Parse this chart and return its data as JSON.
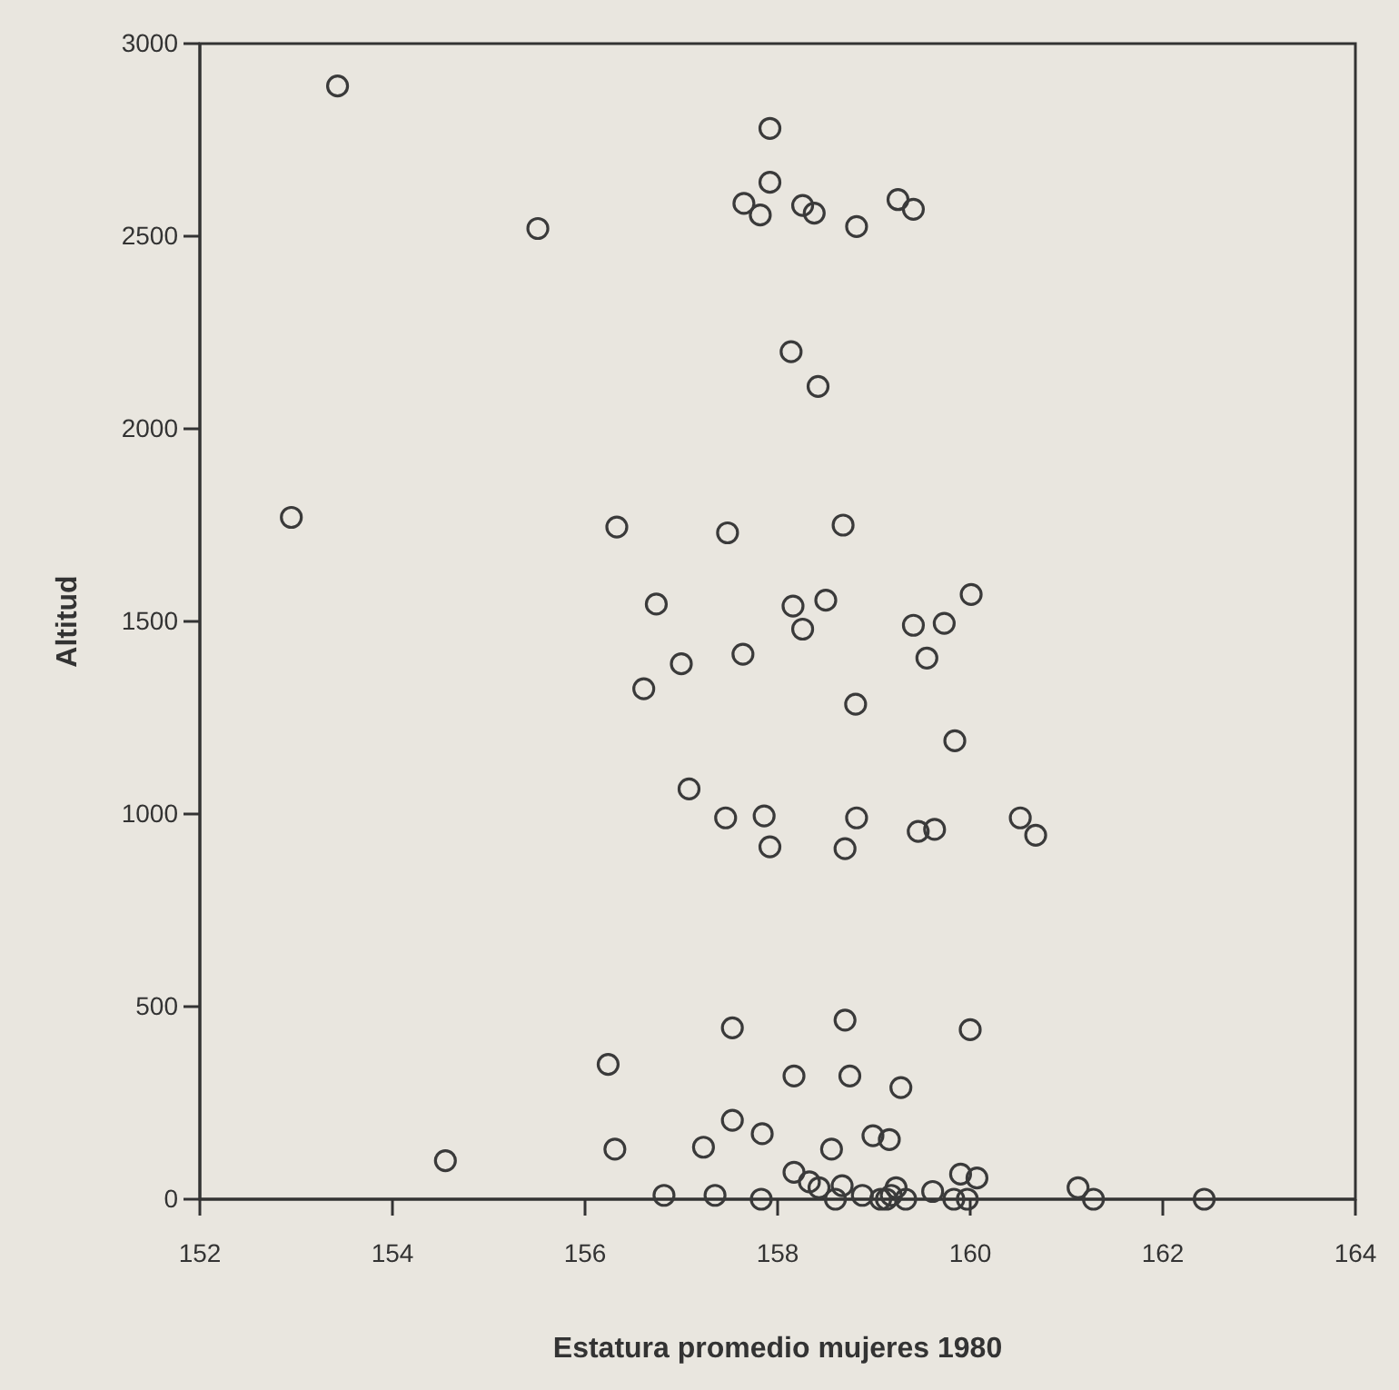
{
  "chart_data": {
    "type": "scatter",
    "xlabel": "Estatura promedio mujeres 1980",
    "ylabel": "Altitud",
    "xlim": [
      152,
      164
    ],
    "xticks": [
      152,
      154,
      156,
      158,
      160,
      162,
      164
    ],
    "ylim": [
      0,
      3000
    ],
    "yticks": [
      0,
      500,
      1000,
      1500,
      2000,
      2500,
      3000
    ],
    "grid": false,
    "marker": "circle",
    "series": [
      {
        "color": "#3a3a3a",
        "x": [
          153.43,
          155.51,
          157.92,
          157.92,
          157.65,
          157.82,
          158.26,
          158.38,
          158.82,
          159.25,
          159.41,
          158.14,
          158.42,
          152.95,
          156.33,
          157.48,
          158.68,
          156.74,
          158.16,
          158.5,
          158.26,
          159.41,
          159.73,
          160.01,
          157.64,
          157.0,
          156.61,
          159.55,
          158.81,
          159.84,
          157.08,
          157.46,
          157.86,
          157.92,
          158.82,
          158.7,
          159.46,
          159.63,
          160.52,
          160.68,
          157.53,
          158.7,
          160.0,
          156.24,
          158.17,
          158.75,
          159.28,
          157.53,
          157.84,
          157.23,
          156.31,
          154.55,
          158.56,
          158.99,
          159.16,
          158.17,
          158.33,
          158.43,
          158.67,
          159.9,
          160.07,
          161.12,
          156.82,
          157.35,
          157.83,
          158.6,
          158.88,
          159.07,
          159.13,
          159.23,
          159.33,
          159.61,
          159.83,
          159.97,
          161.28,
          162.43,
          159.18
        ],
        "values": [
          2890,
          2520,
          2780,
          2640,
          2585,
          2555,
          2580,
          2560,
          2525,
          2595,
          2570,
          2200,
          2110,
          1770,
          1745,
          1730,
          1750,
          1545,
          1540,
          1555,
          1480,
          1490,
          1495,
          1570,
          1415,
          1390,
          1325,
          1405,
          1285,
          1190,
          1065,
          990,
          995,
          915,
          990,
          910,
          955,
          960,
          990,
          945,
          445,
          465,
          440,
          350,
          320,
          320,
          290,
          205,
          170,
          135,
          130,
          100,
          130,
          165,
          155,
          70,
          45,
          30,
          35,
          65,
          55,
          30,
          10,
          10,
          0,
          0,
          10,
          0,
          0,
          30,
          0,
          20,
          0,
          0,
          0,
          0,
          10
        ]
      }
    ]
  }
}
